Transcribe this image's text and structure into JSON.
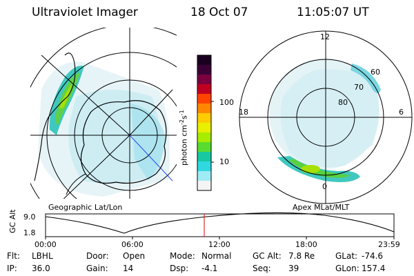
{
  "header": {
    "instrument": "Ultraviolet Imager",
    "date": "18 Oct 07",
    "time": "11:05:07 UT"
  },
  "left_panel": {
    "caption": "Geographic Lat/Lon"
  },
  "colorbar": {
    "label": "photon cm",
    "label_exp1": "-2",
    "label_mid": "s",
    "label_exp2": "-1",
    "tick_high": "100",
    "tick_low": "10",
    "colors": [
      "#1a0020",
      "#3a0036",
      "#7a0040",
      "#c00020",
      "#ff4400",
      "#ff8800",
      "#ffcc00",
      "#e8f000",
      "#a8ec00",
      "#58dc30",
      "#18c8a0",
      "#30d8e0",
      "#a0ecf4",
      "#f4f4f4"
    ]
  },
  "right_panel": {
    "caption": "Apex MLat/MLT",
    "mlt_labels": {
      "top": "12",
      "bottom": "0",
      "left": "18",
      "right": "6"
    },
    "mlat_labels": [
      "60",
      "70",
      "80"
    ]
  },
  "altitude_plot": {
    "ylabel_line1": "GC",
    "ylabel_line2": "Alt",
    "y_ticks": [
      "9.0",
      "1.8"
    ],
    "x_ticks": [
      "00:00",
      "06:00",
      "12:00",
      "18:00",
      "23:59"
    ]
  },
  "info": {
    "row1": [
      {
        "key": "Flt:",
        "value": "LBHL"
      },
      {
        "key": "Door:",
        "value": "Open"
      },
      {
        "key": "Mode:",
        "value": "Normal"
      },
      {
        "key": "GC Alt:",
        "value": "7.8 Re"
      },
      {
        "key": "GLat:",
        "value": "-74.6"
      }
    ],
    "row2": [
      {
        "key": "IP:",
        "value": "36.0"
      },
      {
        "key": "Gain:",
        "value": "14"
      },
      {
        "key": "Dsp:",
        "value": "-4.1"
      },
      {
        "key": "Seq:",
        "value": "39"
      },
      {
        "key": "GLon:",
        "value": "157.4"
      }
    ]
  }
}
